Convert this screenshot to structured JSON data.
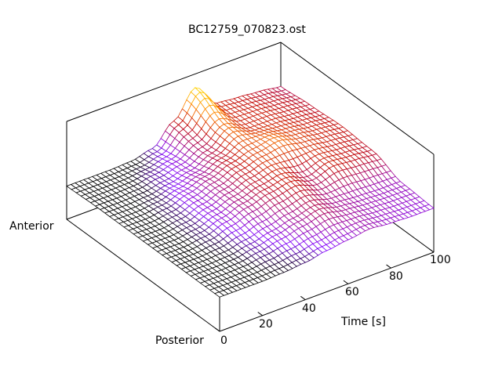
{
  "chart_data": {
    "type": "surface",
    "title": "BC12759_070823.ost",
    "xlabel": "Time [s]",
    "ylabel_anterior": "Anterior",
    "ylabel_posterior": "Posterior",
    "xlim": [
      0,
      100
    ],
    "xticks": [
      "0",
      "20",
      "40",
      "60",
      "80",
      "100"
    ],
    "zlim": [
      0,
      1
    ],
    "grid_time": [
      0,
      10,
      20,
      30,
      40,
      50,
      60,
      70,
      80,
      90,
      100
    ],
    "grid_position_posterior_to_anterior": [
      0,
      0.2,
      0.4,
      0.6,
      0.8,
      1.0
    ],
    "z": [
      [
        0.35,
        0.35,
        0.35,
        0.36,
        0.38,
        0.42,
        0.45,
        0.48,
        0.46,
        0.45,
        0.45
      ],
      [
        0.35,
        0.35,
        0.36,
        0.4,
        0.45,
        0.5,
        0.55,
        0.5,
        0.48,
        0.47,
        0.47
      ],
      [
        0.35,
        0.35,
        0.38,
        0.45,
        0.52,
        0.58,
        0.62,
        0.55,
        0.62,
        0.6,
        0.58
      ],
      [
        0.35,
        0.35,
        0.38,
        0.45,
        0.52,
        0.6,
        0.66,
        0.7,
        0.65,
        0.62,
        0.6
      ],
      [
        0.35,
        0.35,
        0.36,
        0.4,
        0.45,
        0.55,
        0.7,
        0.62,
        0.62,
        0.6,
        0.58
      ],
      [
        0.34,
        0.34,
        0.34,
        0.35,
        0.4,
        0.6,
        0.86,
        0.62,
        0.6,
        0.58,
        0.55
      ]
    ],
    "palette": [
      "#000000",
      "#8000ff",
      "#c00000",
      "#ff8000",
      "#ffd000"
    ]
  }
}
